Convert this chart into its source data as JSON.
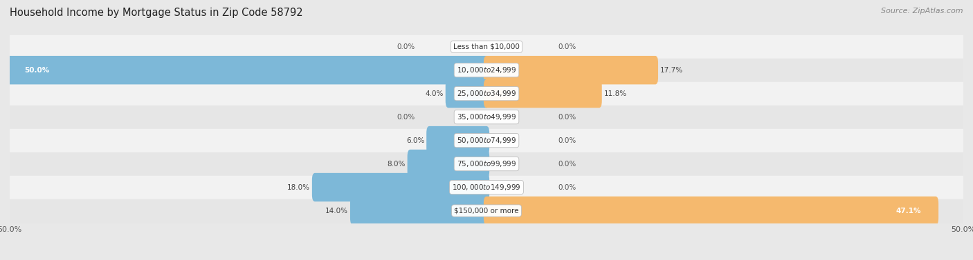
{
  "title": "Household Income by Mortgage Status in Zip Code 58792",
  "source": "Source: ZipAtlas.com",
  "categories": [
    "Less than $10,000",
    "$10,000 to $24,999",
    "$25,000 to $34,999",
    "$35,000 to $49,999",
    "$50,000 to $74,999",
    "$75,000 to $99,999",
    "$100,000 to $149,999",
    "$150,000 or more"
  ],
  "without_mortgage": [
    0.0,
    50.0,
    4.0,
    0.0,
    6.0,
    8.0,
    18.0,
    14.0
  ],
  "with_mortgage": [
    0.0,
    17.7,
    11.8,
    0.0,
    0.0,
    0.0,
    0.0,
    47.1
  ],
  "color_without": "#7db8d8",
  "color_with": "#f5b96e",
  "axis_max": 50.0,
  "bg_color": "#e8e8e8",
  "title_fontsize": 10.5,
  "source_fontsize": 8,
  "label_fontsize": 7.5,
  "category_fontsize": 7.5,
  "bar_height": 0.62,
  "row_bg_colors": [
    "#f2f2f2",
    "#e6e6e6"
  ]
}
